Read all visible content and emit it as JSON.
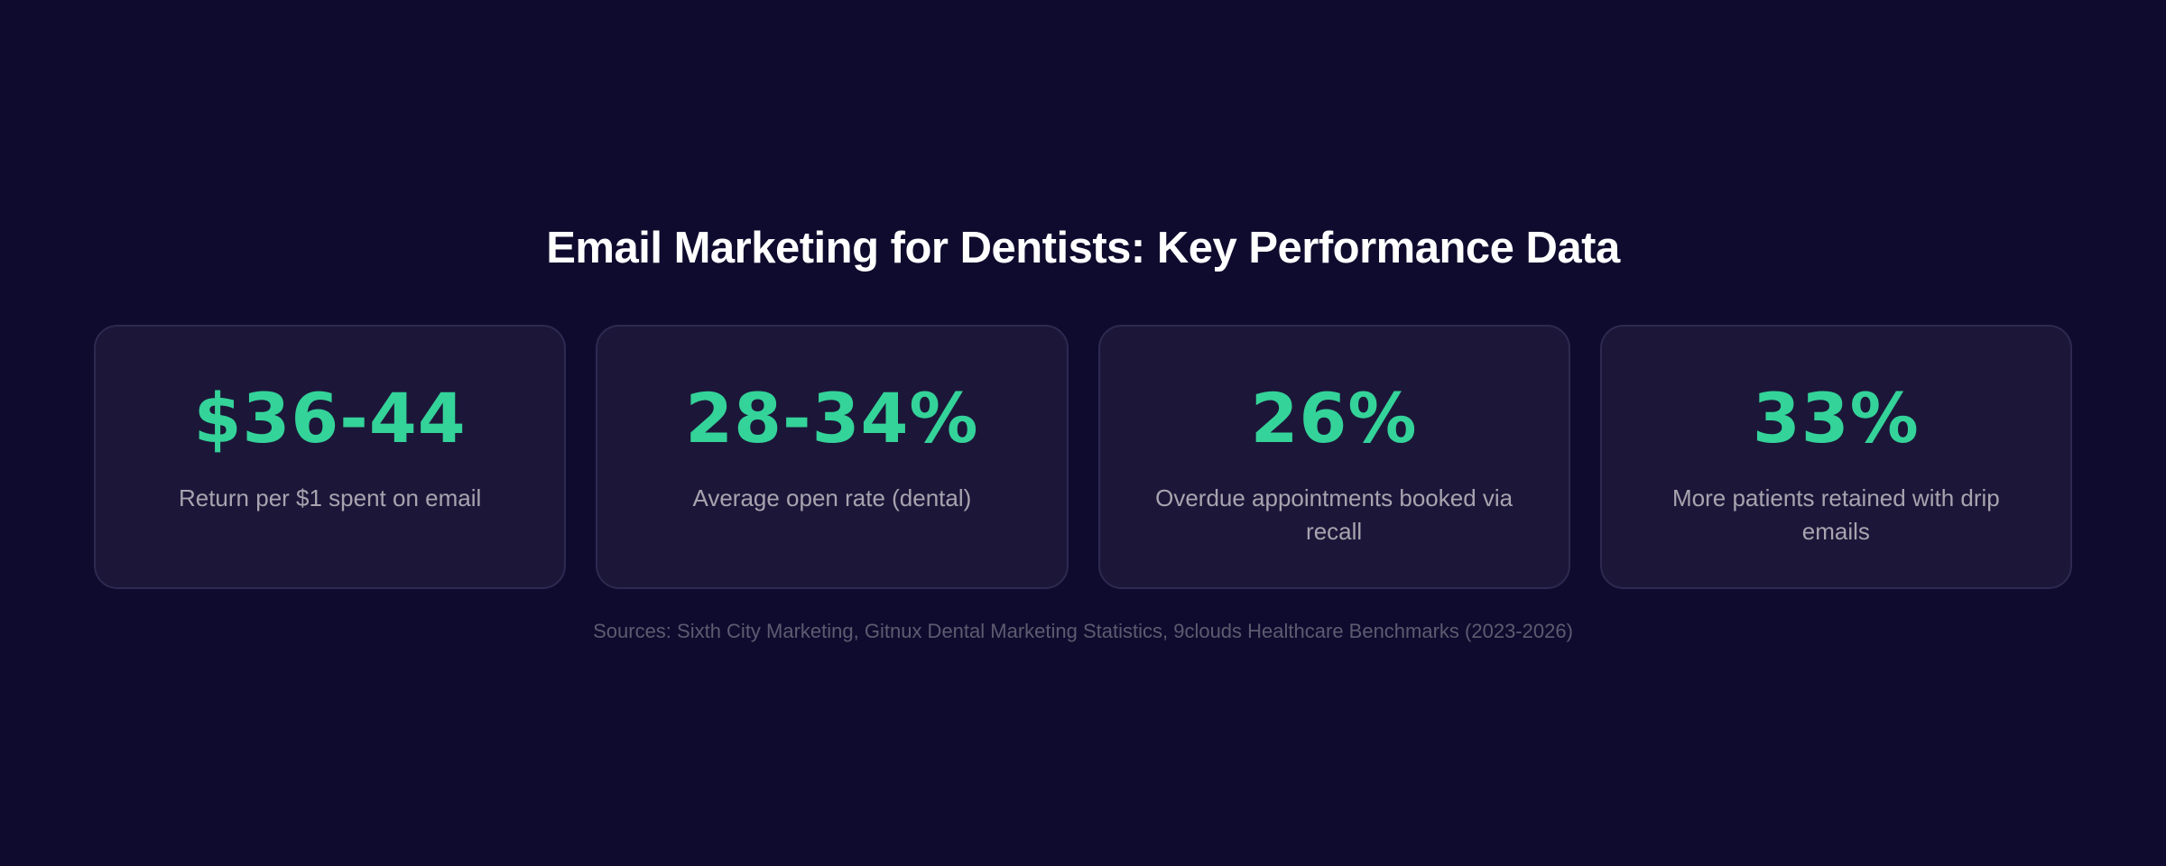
{
  "page": {
    "title": "Email Marketing for Dentists: Key Performance Data",
    "sources": "Sources: Sixth City Marketing, Gitnux Dental Marketing Statistics, 9clouds Healthcare Benchmarks (2023-2026)"
  },
  "stats": [
    {
      "value": "$36-44",
      "label": "Return per $1 spent on email"
    },
    {
      "value": "28-34%",
      "label": "Average open rate (dental)"
    },
    {
      "value": "26%",
      "label": "Overdue appointments booked via recall"
    },
    {
      "value": "33%",
      "label": "More patients retained with drip emails"
    }
  ],
  "colors": {
    "background": "#0F0B2E",
    "card_background": "#1C1739",
    "card_border": "#2D2950",
    "accent": "#34D399",
    "title": "#FFFFFF",
    "label": "#A8A3AE",
    "sources": "#5E5A70"
  }
}
